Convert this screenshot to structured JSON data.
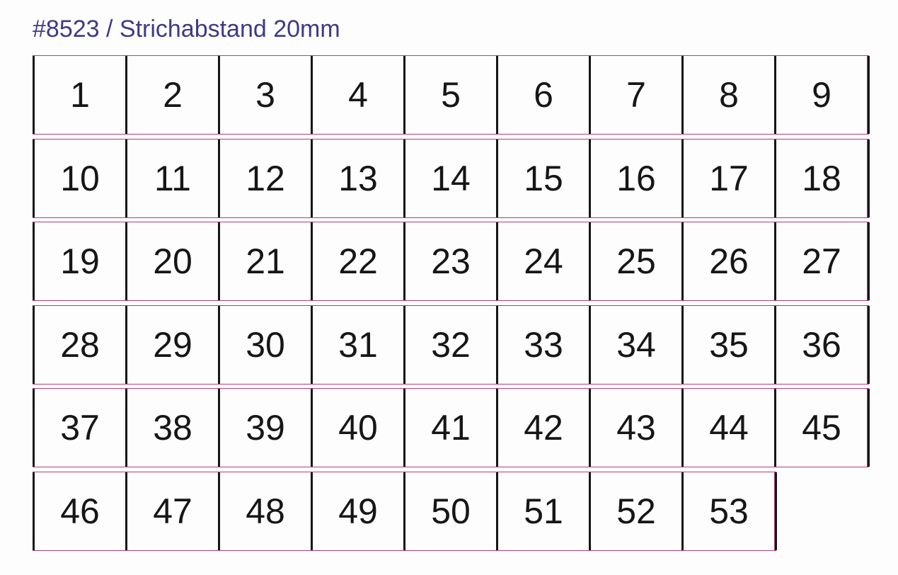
{
  "title": "#8523 / Strichabstand 20mm",
  "colors": {
    "title": "#3f3a86",
    "rule": "#b0407a",
    "line": "#161616"
  },
  "rows": [
    [
      "1",
      "2",
      "3",
      "4",
      "5",
      "6",
      "7",
      "8",
      "9"
    ],
    [
      "10",
      "11",
      "12",
      "13",
      "14",
      "15",
      "16",
      "17",
      "18"
    ],
    [
      "19",
      "20",
      "21",
      "22",
      "23",
      "24",
      "25",
      "26",
      "27"
    ],
    [
      "28",
      "29",
      "30",
      "31",
      "32",
      "33",
      "34",
      "35",
      "36"
    ],
    [
      "37",
      "38",
      "39",
      "40",
      "41",
      "42",
      "43",
      "44",
      "45"
    ],
    [
      "46",
      "47",
      "48",
      "49",
      "50",
      "51",
      "52",
      "53"
    ]
  ]
}
